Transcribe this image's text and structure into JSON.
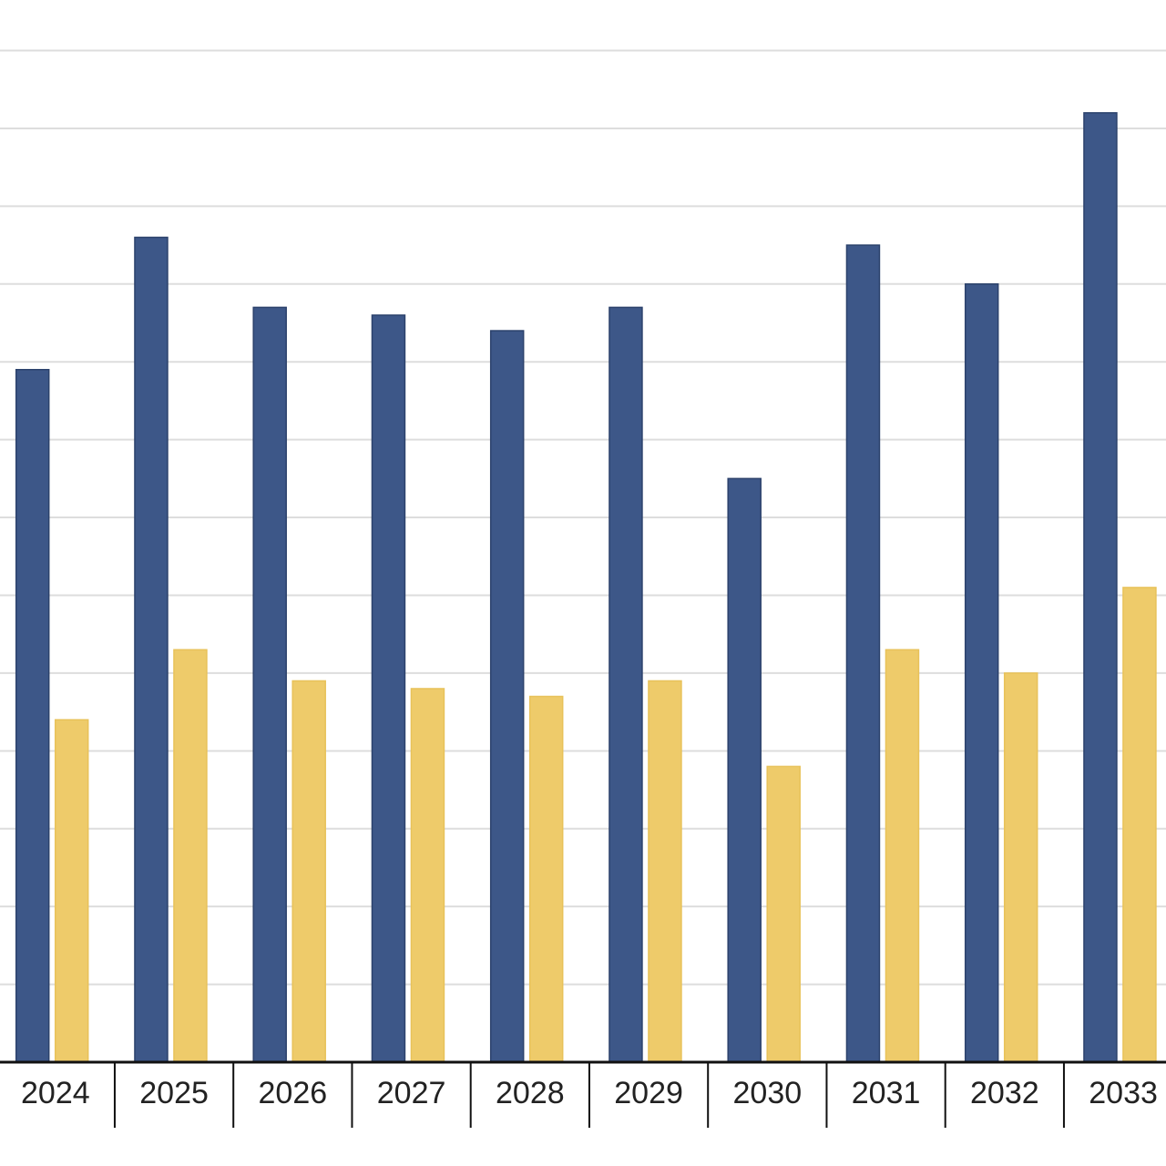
{
  "chart_data": {
    "type": "bar",
    "categories": [
      "2024",
      "2025",
      "2026",
      "2027",
      "2028",
      "2029",
      "2030",
      "2031",
      "2032",
      "2033"
    ],
    "series": [
      {
        "color": "#3d5788",
        "values": [
          8.9,
          10.6,
          9.7,
          9.6,
          9.4,
          9.7,
          7.5,
          10.5,
          10.0,
          12.2
        ]
      },
      {
        "color": "#eecb6a",
        "values": [
          4.4,
          5.3,
          4.9,
          4.8,
          4.7,
          4.9,
          3.8,
          5.3,
          5.0,
          6.1
        ]
      }
    ],
    "ylim": [
      0,
      13.65
    ],
    "yticks": [
      1,
      2,
      3,
      4,
      5,
      6,
      7,
      8,
      9,
      10,
      11,
      12,
      13
    ],
    "grid": true
  }
}
